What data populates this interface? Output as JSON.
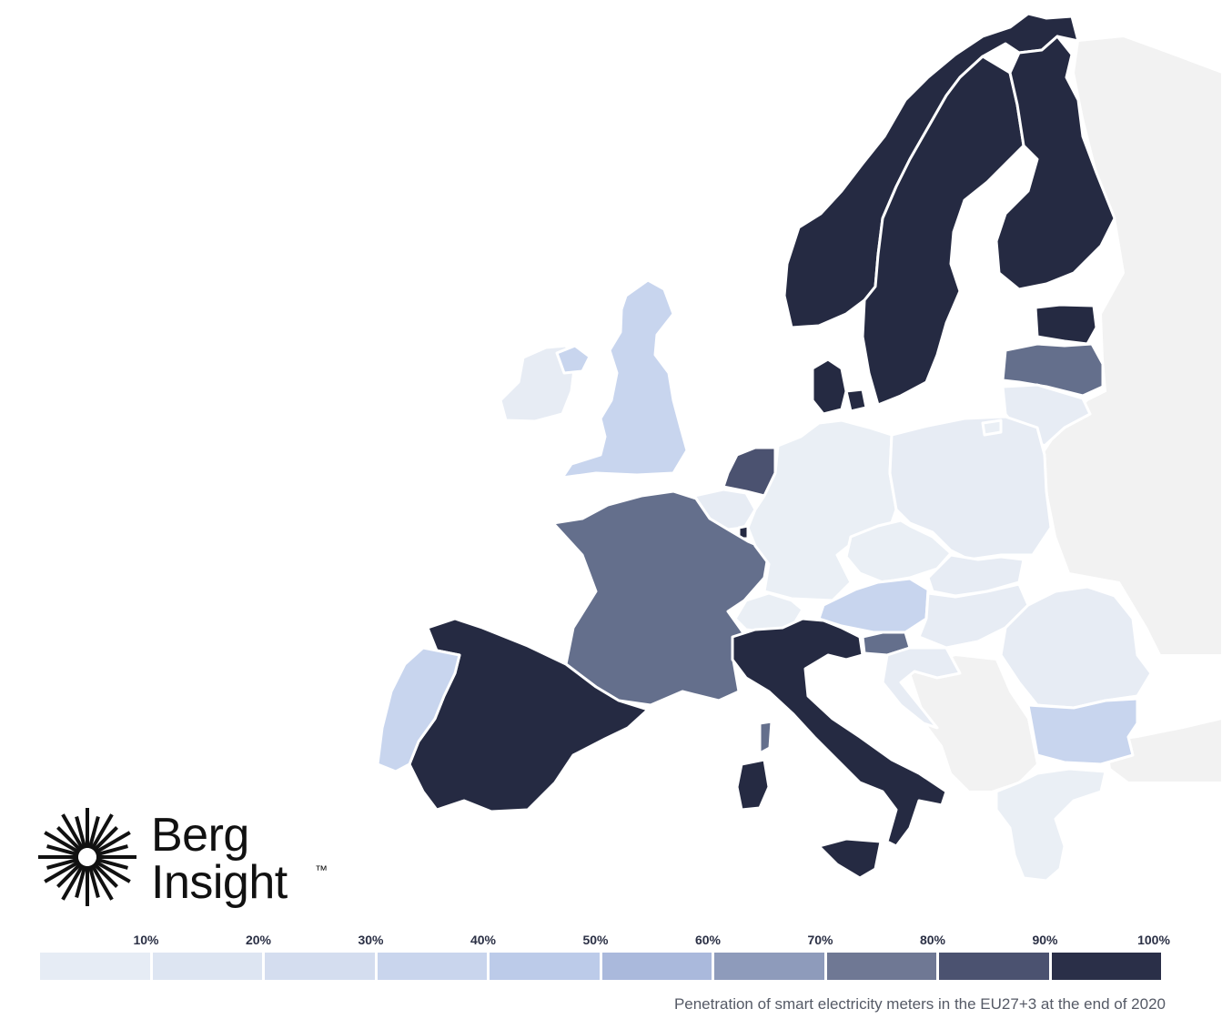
{
  "brand": {
    "line1": "Berg",
    "line2": "Insight",
    "tm": "™"
  },
  "caption": "Penetration of smart electricity meters in the EU27+3 at the end of 2020",
  "legend": {
    "ticks": [
      "10%",
      "20%",
      "30%",
      "40%",
      "50%",
      "60%",
      "70%",
      "80%",
      "90%",
      "100%"
    ],
    "colors": [
      "#e6ecf5",
      "#dde5f2",
      "#d4ddef",
      "#c9d5ed",
      "#bccbe9",
      "#aab9dc",
      "#8e9bbb",
      "#6f7894",
      "#4b5270",
      "#2a2f48"
    ]
  },
  "colors": {
    "dark": "#252a42",
    "mid": "#646f8c",
    "blue": "#c8d5ee",
    "pale": "#e7ecf4",
    "paler": "#eaeff5",
    "noneu": "#f2f2f2"
  }
}
